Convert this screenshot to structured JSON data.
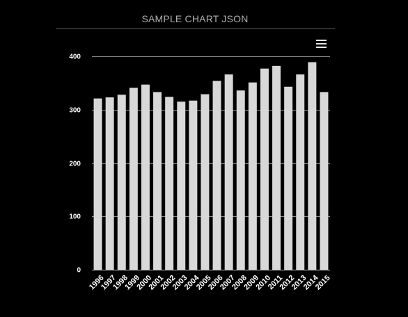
{
  "chart_data": {
    "type": "bar",
    "title": "SAMPLE CHART JSON",
    "categories": [
      "1996",
      "1997",
      "1998",
      "1999",
      "2000",
      "2001",
      "2002",
      "2003",
      "2004",
      "2005",
      "2006",
      "2007",
      "2008",
      "2009",
      "2010",
      "2011",
      "2012",
      "2013",
      "2014",
      "2015"
    ],
    "values": [
      321,
      323,
      328,
      341,
      347,
      333,
      324,
      315,
      317,
      329,
      354,
      366,
      336,
      351,
      377,
      382,
      343,
      366,
      389,
      333
    ],
    "ylim": [
      0,
      400
    ],
    "yticks": [
      "0",
      "100",
      "200",
      "300",
      "400"
    ],
    "grid": true,
    "bar_color": "#d8d8d8",
    "background": "#000000"
  },
  "toolbar": {
    "menu_icon": "hamburger-menu-icon"
  }
}
